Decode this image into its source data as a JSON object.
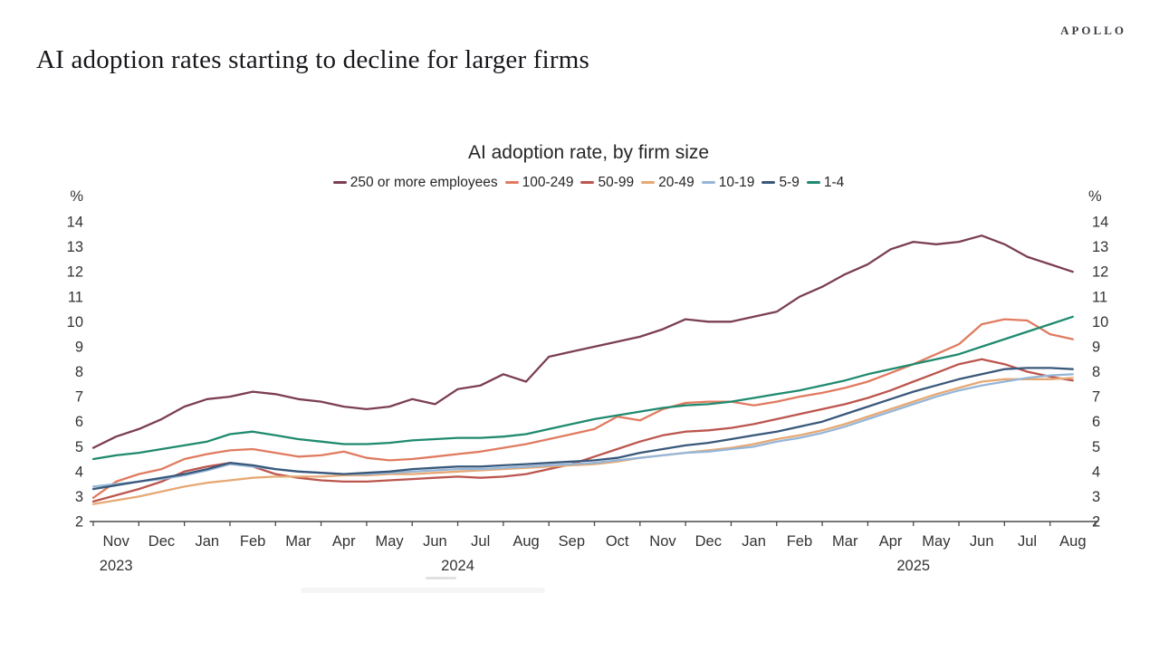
{
  "page": {
    "brand": "APOLLO",
    "title": "AI adoption rates starting to decline for larger firms"
  },
  "chart_data": {
    "type": "line",
    "title": "AI adoption rate, by firm size",
    "y_unit": "%",
    "ylim": [
      2,
      14
    ],
    "y_ticks": [
      14,
      13,
      12,
      11,
      10,
      9,
      8,
      7,
      6,
      5,
      4,
      3,
      2
    ],
    "grid": false,
    "legend_position": "top",
    "points_per_month": 2,
    "x_months": [
      "Nov",
      "Dec",
      "Jan",
      "Feb",
      "Mar",
      "Apr",
      "May",
      "Jun",
      "Jul",
      "Aug",
      "Sep",
      "Oct",
      "Nov",
      "Dec",
      "Jan",
      "Feb",
      "Mar",
      "Apr",
      "May",
      "Jun",
      "Jul",
      "Aug"
    ],
    "x_years": [
      {
        "label": "2023",
        "from": 0,
        "to": 0
      },
      {
        "label": "2024",
        "from": 2,
        "to": 13
      },
      {
        "label": "2025",
        "from": 14,
        "to": 21
      }
    ],
    "series": [
      {
        "name": "250 or more employees",
        "color": "#7B3E53",
        "values": [
          4.95,
          5.4,
          5.7,
          6.1,
          6.6,
          6.9,
          7.0,
          7.2,
          7.1,
          6.9,
          6.8,
          6.6,
          6.5,
          6.6,
          6.9,
          6.7,
          7.3,
          7.45,
          7.9,
          7.6,
          8.6,
          8.8,
          9.0,
          9.2,
          9.4,
          9.7,
          10.1,
          10.0,
          10.0,
          10.2,
          10.4,
          11.0,
          11.4,
          11.9,
          12.3,
          12.9,
          13.2,
          13.1,
          13.2,
          13.45,
          13.1,
          12.6,
          12.3,
          12.0
        ]
      },
      {
        "name": "100-249",
        "color": "#E07B60",
        "values": [
          2.95,
          3.6,
          3.9,
          4.1,
          4.5,
          4.7,
          4.85,
          4.9,
          4.75,
          4.6,
          4.65,
          4.8,
          4.55,
          4.45,
          4.5,
          4.6,
          4.7,
          4.8,
          4.95,
          5.1,
          5.3,
          5.5,
          5.7,
          6.2,
          6.05,
          6.5,
          6.75,
          6.8,
          6.8,
          6.65,
          6.8,
          7.0,
          7.15,
          7.35,
          7.6,
          7.95,
          8.3,
          8.7,
          9.1,
          9.9,
          10.1,
          10.05,
          9.5,
          9.3
        ]
      },
      {
        "name": "50-99",
        "color": "#BC554E",
        "values": [
          2.8,
          3.05,
          3.3,
          3.6,
          4.0,
          4.2,
          4.35,
          4.2,
          3.9,
          3.75,
          3.65,
          3.6,
          3.6,
          3.65,
          3.7,
          3.75,
          3.8,
          3.75,
          3.8,
          3.9,
          4.1,
          4.3,
          4.6,
          4.9,
          5.2,
          5.45,
          5.6,
          5.65,
          5.75,
          5.9,
          6.1,
          6.3,
          6.5,
          6.7,
          6.95,
          7.25,
          7.6,
          7.95,
          8.3,
          8.5,
          8.3,
          8.0,
          7.8,
          7.65
        ]
      },
      {
        "name": "20-49",
        "color": "#E6A873",
        "values": [
          2.7,
          2.85,
          3.0,
          3.2,
          3.4,
          3.55,
          3.65,
          3.75,
          3.8,
          3.8,
          3.8,
          3.85,
          3.85,
          3.9,
          3.9,
          3.95,
          4.0,
          4.05,
          4.1,
          4.15,
          4.2,
          4.25,
          4.3,
          4.4,
          4.55,
          4.65,
          4.75,
          4.85,
          4.95,
          5.1,
          5.3,
          5.45,
          5.65,
          5.9,
          6.2,
          6.5,
          6.8,
          7.1,
          7.35,
          7.6,
          7.7,
          7.7,
          7.7,
          7.75
        ]
      },
      {
        "name": "10-19",
        "color": "#96B6D8",
        "values": [
          3.4,
          3.5,
          3.6,
          3.7,
          3.85,
          4.05,
          4.3,
          4.2,
          4.1,
          4.0,
          3.95,
          3.9,
          3.9,
          3.95,
          4.0,
          4.05,
          4.1,
          4.1,
          4.15,
          4.2,
          4.25,
          4.3,
          4.35,
          4.45,
          4.55,
          4.65,
          4.75,
          4.8,
          4.9,
          5.0,
          5.2,
          5.35,
          5.55,
          5.8,
          6.1,
          6.4,
          6.7,
          7.0,
          7.25,
          7.45,
          7.6,
          7.75,
          7.85,
          7.9
        ]
      },
      {
        "name": "5-9",
        "color": "#39587A",
        "values": [
          3.3,
          3.45,
          3.6,
          3.75,
          3.9,
          4.1,
          4.35,
          4.25,
          4.1,
          4.0,
          3.95,
          3.9,
          3.95,
          4.0,
          4.1,
          4.15,
          4.2,
          4.2,
          4.25,
          4.3,
          4.35,
          4.4,
          4.45,
          4.55,
          4.75,
          4.9,
          5.05,
          5.15,
          5.3,
          5.45,
          5.6,
          5.8,
          6.0,
          6.3,
          6.6,
          6.9,
          7.2,
          7.45,
          7.7,
          7.9,
          8.1,
          8.15,
          8.15,
          8.1
        ]
      },
      {
        "name": "1-4",
        "color": "#1F8A6F",
        "values": [
          4.5,
          4.65,
          4.75,
          4.9,
          5.05,
          5.2,
          5.5,
          5.6,
          5.45,
          5.3,
          5.2,
          5.1,
          5.1,
          5.15,
          5.25,
          5.3,
          5.35,
          5.35,
          5.4,
          5.5,
          5.7,
          5.9,
          6.1,
          6.25,
          6.4,
          6.55,
          6.65,
          6.7,
          6.8,
          6.95,
          7.1,
          7.25,
          7.45,
          7.65,
          7.9,
          8.1,
          8.3,
          8.5,
          8.7,
          9.0,
          9.3,
          9.6,
          9.9,
          10.2
        ]
      }
    ]
  }
}
